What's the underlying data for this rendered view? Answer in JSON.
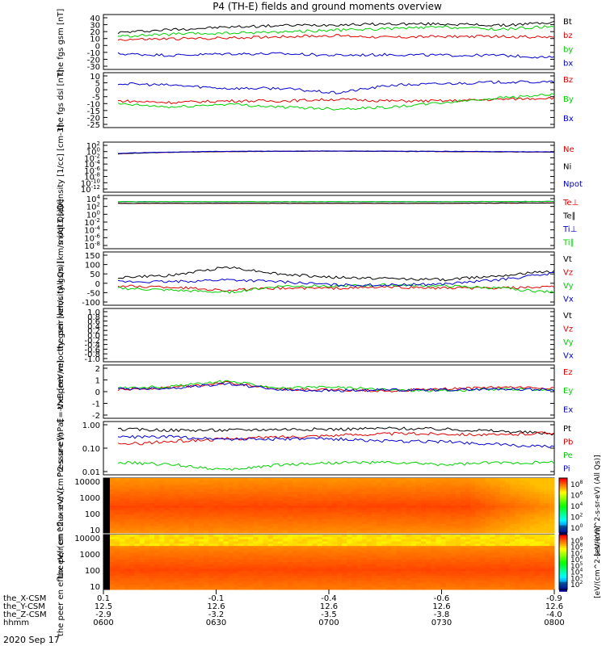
{
  "title": "P4 (TH-E) fields and ground moments overview",
  "date_label": "2020 Sep 17",
  "xaxis": {
    "row_labels": [
      "the_X-CSM",
      "the_Y-CSM",
      "the_Z-CSM",
      "hhmm"
    ],
    "ticks": [
      {
        "time": "0600",
        "values": [
          "0.1",
          "12.5",
          "-2.9"
        ]
      },
      {
        "time": "0630",
        "values": [
          "-0.1",
          "12.6",
          "-3.2"
        ]
      },
      {
        "time": "0700",
        "values": [
          "-0.4",
          "12.6",
          "-3.5"
        ]
      },
      {
        "time": "0730",
        "values": [
          "-0.6",
          "12.6",
          "-3.8"
        ]
      },
      {
        "time": "0800",
        "values": [
          "-0.9",
          "12.6",
          "-4.0"
        ]
      }
    ]
  },
  "colors": {
    "black": "#000000",
    "red": "#e00000",
    "green": "#00d000",
    "blue": "#0000d0"
  },
  "chart_data": [
    {
      "type": "line",
      "ylabel": "the fgs gsm [nT]",
      "ylim": [
        -30,
        40
      ],
      "scale": "linear",
      "ticks": [
        "40",
        "30",
        "20",
        "10",
        "0",
        "-10",
        "-20",
        "-30"
      ],
      "legend": [
        "Bt",
        "bz",
        "by",
        "bx"
      ],
      "x": [
        "0600",
        "0615",
        "0630",
        "0645",
        "0700",
        "0715",
        "0730",
        "0745",
        "0800"
      ],
      "series": [
        {
          "name": "Bt",
          "color": "black",
          "values": [
            17,
            21,
            24,
            26,
            27,
            28,
            28,
            26,
            30
          ]
        },
        {
          "name": "bz",
          "color": "red",
          "values": [
            8,
            9,
            10,
            12,
            13,
            11,
            12,
            12,
            11
          ]
        },
        {
          "name": "by",
          "color": "green",
          "values": [
            12,
            15,
            16,
            18,
            20,
            22,
            24,
            21,
            25
          ]
        },
        {
          "name": "bx",
          "color": "blue",
          "values": [
            -10,
            -12,
            -10,
            -10,
            -12,
            -11,
            -12,
            -12,
            -15
          ]
        }
      ]
    },
    {
      "type": "line",
      "ylabel": "the fgs dsl [nT]",
      "ylim": [
        -25,
        10
      ],
      "scale": "linear",
      "ticks": [
        "10",
        "5",
        "0",
        "-5",
        "-10",
        "-15",
        "-20",
        "-25"
      ],
      "legend": [
        "Bz",
        "By",
        "Bx"
      ],
      "x": [
        "0600",
        "0615",
        "0630",
        "0645",
        "0700",
        "0715",
        "0730",
        "0745",
        "0800"
      ],
      "series": [
        {
          "name": "Bz",
          "color": "red",
          "values": [
            -8,
            -9,
            -8,
            -8,
            -7,
            -8,
            -8,
            -7,
            -6
          ]
        },
        {
          "name": "By",
          "color": "green",
          "values": [
            -10,
            -12,
            -10,
            -12,
            -13,
            -12,
            -9,
            -6,
            -4
          ]
        },
        {
          "name": "Bx",
          "color": "blue",
          "values": [
            3,
            2,
            0,
            0,
            -3,
            2,
            3,
            4,
            4
          ]
        }
      ]
    },
    {
      "type": "line",
      "ylabel": "Density [1/cc] [cm-3]",
      "ylim": [
        1e-12,
        1000
      ],
      "scale": "log",
      "ticks": [
        "10^2",
        "10^0",
        "10^-2",
        "10^-4",
        "10^-6",
        "10^-8",
        "10^-10",
        "10^-12"
      ],
      "legend": [
        "Ne",
        "Ni",
        "Npot"
      ],
      "x": [
        "0600",
        "0630",
        "0700",
        "0730",
        "0800"
      ],
      "series": [
        {
          "name": "Ne",
          "color": "red",
          "values": [
            0.3,
            1.5,
            2,
            1.5,
            1
          ]
        },
        {
          "name": "Ni",
          "color": "black",
          "values": [
            0.3,
            1.5,
            2,
            1.5,
            1
          ]
        },
        {
          "name": "Npot",
          "color": "blue",
          "values": [
            0.4,
            1.8,
            2.2,
            1.8,
            1.2
          ]
        }
      ]
    },
    {
      "type": "line",
      "ylabel": "moqt3 [eV]",
      "ylim": [
        1e-12,
        100000
      ],
      "scale": "log",
      "ticks": [
        "10^4",
        "10^2",
        "10^0",
        "10^-2",
        "10^-4",
        "10^-6",
        "10^-8"
      ],
      "legend": [
        "Te⊥",
        "Te∥",
        "Ti⊥",
        "Ti∥"
      ],
      "x": [
        "0600",
        "0630",
        "0700",
        "0730",
        "0800"
      ],
      "series": [
        {
          "name": "Te⊥",
          "color": "red",
          "values": [
            300,
            300,
            300,
            300,
            400
          ]
        },
        {
          "name": "Te∥",
          "color": "black",
          "values": [
            300,
            300,
            300,
            300,
            400
          ]
        },
        {
          "name": "Ti⊥",
          "color": "blue",
          "values": [
            1000,
            1000,
            1000,
            1000,
            1200
          ]
        },
        {
          "name": "Ti∥",
          "color": "green",
          "values": [
            1000,
            1000,
            1000,
            1000,
            1200
          ]
        }
      ]
    },
    {
      "type": "line",
      "ylabel": "the peir velocity gsm [km/s (All Qs)]",
      "ylim": [
        -100,
        150
      ],
      "scale": "linear",
      "ticks": [
        "150",
        "100",
        "50",
        "0",
        "-50",
        "-100"
      ],
      "legend": [
        "Vt",
        "Vz",
        "Vy",
        "Vx"
      ],
      "x": [
        "0600",
        "0615",
        "0630",
        "0645",
        "0700",
        "0715",
        "0730",
        "0745",
        "0800"
      ],
      "series": [
        {
          "name": "Vt",
          "color": "black",
          "values": [
            30,
            40,
            80,
            45,
            30,
            25,
            20,
            40,
            60
          ]
        },
        {
          "name": "Vz",
          "color": "red",
          "values": [
            -10,
            -15,
            -30,
            -20,
            -20,
            -15,
            -20,
            -20,
            -15
          ]
        },
        {
          "name": "Vy",
          "color": "green",
          "values": [
            -20,
            -30,
            -40,
            -10,
            -10,
            -5,
            -10,
            -20,
            -40
          ]
        },
        {
          "name": "Vx",
          "color": "blue",
          "values": [
            10,
            10,
            20,
            10,
            -5,
            -5,
            0,
            20,
            50
          ]
        }
      ]
    },
    {
      "type": "line",
      "ylabel": "the peer velocity gsm [km/s (All Qs)]",
      "ylim": [
        -1,
        1
      ],
      "scale": "linear",
      "ticks": [
        "1.0",
        "0.8",
        "0.6",
        "0.4",
        "0.2",
        "0.0",
        "-0.2",
        "-0.4",
        "-0.6",
        "-0.8",
        "-1.0"
      ],
      "legend": [
        "Vt",
        "Vz",
        "Vy",
        "Vx"
      ],
      "x": [],
      "series": []
    },
    {
      "type": "line",
      "ylabel": "E=-VxB [mV/m]",
      "ylim": [
        -3,
        3
      ],
      "scale": "linear",
      "ticks": [
        "2",
        "1",
        "0",
        "-1",
        "-2"
      ],
      "legend": [
        "Ez",
        "Ey",
        "Ex"
      ],
      "x": [
        "0600",
        "0615",
        "0630",
        "0645",
        "0700",
        "0715",
        "0730",
        "0745",
        "0800"
      ],
      "series": [
        {
          "name": "Ez",
          "color": "red",
          "values": [
            0.2,
            0.5,
            1,
            0.3,
            0.2,
            0.1,
            0.3,
            0.5,
            0.4
          ]
        },
        {
          "name": "Ey",
          "color": "green",
          "values": [
            0.4,
            0.6,
            1.2,
            0.4,
            0.5,
            0.2,
            0.1,
            0.3,
            0.2
          ]
        },
        {
          "name": "Ex",
          "color": "blue",
          "values": [
            0.3,
            0.4,
            0.9,
            0.2,
            0.1,
            0.2,
            0.2,
            0.3,
            0.2
          ]
        }
      ]
    },
    {
      "type": "line",
      "ylabel": "Pressure [nPa]",
      "ylim": [
        0.01,
        1.2
      ],
      "scale": "log",
      "ticks": [
        "1.00",
        "0.10",
        "0.01"
      ],
      "legend": [
        "Pt",
        "Pb",
        "Pe",
        "Pi"
      ],
      "x": [
        "0600",
        "0615",
        "0630",
        "0645",
        "0700",
        "0715",
        "0730",
        "0745",
        "0800"
      ],
      "series": [
        {
          "name": "Pt",
          "color": "black",
          "values": [
            0.6,
            0.55,
            0.55,
            0.6,
            0.6,
            0.65,
            0.6,
            0.5,
            0.4
          ]
        },
        {
          "name": "Pb",
          "color": "red",
          "values": [
            0.15,
            0.2,
            0.25,
            0.3,
            0.35,
            0.4,
            0.4,
            0.35,
            0.45
          ]
        },
        {
          "name": "Pe",
          "color": "green",
          "values": [
            0.03,
            0.025,
            0.015,
            0.025,
            0.03,
            0.03,
            0.025,
            0.03,
            0.03
          ]
        },
        {
          "name": "Pi",
          "color": "blue",
          "values": [
            0.3,
            0.3,
            0.25,
            0.25,
            0.25,
            0.2,
            0.2,
            0.15,
            0.12
          ]
        }
      ]
    },
    {
      "type": "heatmap",
      "ylabel": "the peir en eflux eV/ (cm^2-s-sr-eV)",
      "ylim": [
        5,
        30000
      ],
      "scale": "log",
      "ticks": [
        "10000",
        "1000",
        "100",
        "10"
      ],
      "colorbar_ticks": [
        "10^8",
        "10^6",
        "10^4",
        "10^2",
        "10^0"
      ],
      "colorbar_label": "[eV/(cm^2-s-sr-eV) (All Qs)]"
    },
    {
      "type": "heatmap",
      "ylabel": "the peer en eflux eV/ (cm^2-s-sr-eV)",
      "ylim": [
        5,
        30000
      ],
      "scale": "log",
      "ticks": [
        "10000",
        "1000",
        "100",
        "10"
      ],
      "colorbar_ticks": [
        "10^9",
        "10^8",
        "10^7",
        "10^6",
        "10^5",
        "10^4",
        "10^3",
        "10^2"
      ],
      "colorbar_label": "[eV/(cm^2-s-sr-eV)]"
    }
  ]
}
